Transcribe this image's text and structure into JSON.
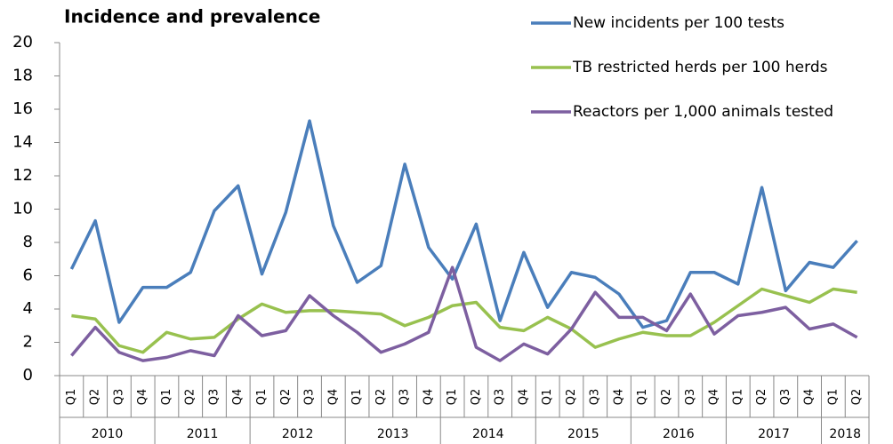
{
  "chart_data": {
    "type": "line",
    "title": "Incidence and prevalence",
    "category_groups": [
      {
        "label": "2010",
        "categories": [
          "Q1",
          "Q2",
          "Q3",
          "Q4"
        ]
      },
      {
        "label": "2011",
        "categories": [
          "Q1",
          "Q2",
          "Q3",
          "Q4"
        ]
      },
      {
        "label": "2012",
        "categories": [
          "Q1",
          "Q2",
          "Q3",
          "Q4"
        ]
      },
      {
        "label": "2013",
        "categories": [
          "Q1",
          "Q2",
          "Q3",
          "Q4"
        ]
      },
      {
        "label": "2014",
        "categories": [
          "Q1",
          "Q2",
          "Q3",
          "Q4"
        ]
      },
      {
        "label": "2015",
        "categories": [
          "Q1",
          "Q2",
          "Q3",
          "Q4"
        ]
      },
      {
        "label": "2016",
        "categories": [
          "Q1",
          "Q2",
          "Q3",
          "Q4"
        ]
      },
      {
        "label": "2017",
        "categories": [
          "Q1",
          "Q2",
          "Q3",
          "Q4"
        ]
      },
      {
        "label": "2018",
        "categories": [
          "Q1",
          "Q2"
        ]
      }
    ],
    "series": [
      {
        "name": "New incidents per 100 tests",
        "color": "#4a7ebb",
        "values": [
          6.4,
          9.3,
          3.2,
          5.3,
          5.3,
          6.2,
          9.9,
          11.4,
          6.1,
          9.8,
          15.3,
          9.0,
          5.6,
          6.6,
          12.7,
          7.7,
          5.8,
          9.1,
          3.3,
          7.4,
          4.1,
          6.2,
          5.9,
          4.9,
          2.9,
          3.3,
          6.2,
          6.2,
          5.5,
          11.3,
          5.1,
          6.8,
          6.5,
          8.1
        ]
      },
      {
        "name": "TB restricted herds per 100 herds",
        "color": "#98c14f",
        "values": [
          3.6,
          3.4,
          1.8,
          1.4,
          2.6,
          2.2,
          2.3,
          3.4,
          4.3,
          3.8,
          3.9,
          3.9,
          3.8,
          3.7,
          3.0,
          3.5,
          4.2,
          4.4,
          2.9,
          2.7,
          3.5,
          2.8,
          1.7,
          2.2,
          2.6,
          2.4,
          2.4,
          3.2,
          4.2,
          5.2,
          4.8,
          4.4,
          5.2,
          5.0
        ]
      },
      {
        "name": "Reactors per 1,000 animals tested",
        "color": "#7d5fa0",
        "values": [
          1.2,
          2.9,
          1.4,
          0.9,
          1.1,
          1.5,
          1.2,
          3.6,
          2.4,
          2.7,
          4.8,
          3.6,
          2.6,
          1.4,
          1.9,
          2.6,
          6.5,
          1.7,
          0.9,
          1.9,
          1.3,
          2.8,
          5.0,
          3.5,
          3.5,
          2.7,
          4.9,
          2.5,
          3.6,
          3.8,
          4.1,
          2.8,
          3.1,
          2.3
        ]
      }
    ],
    "ylim": [
      0,
      20
    ],
    "yticks": [
      0,
      2,
      4,
      6,
      8,
      10,
      12,
      14,
      16,
      18,
      20
    ],
    "legend": "top-right"
  }
}
